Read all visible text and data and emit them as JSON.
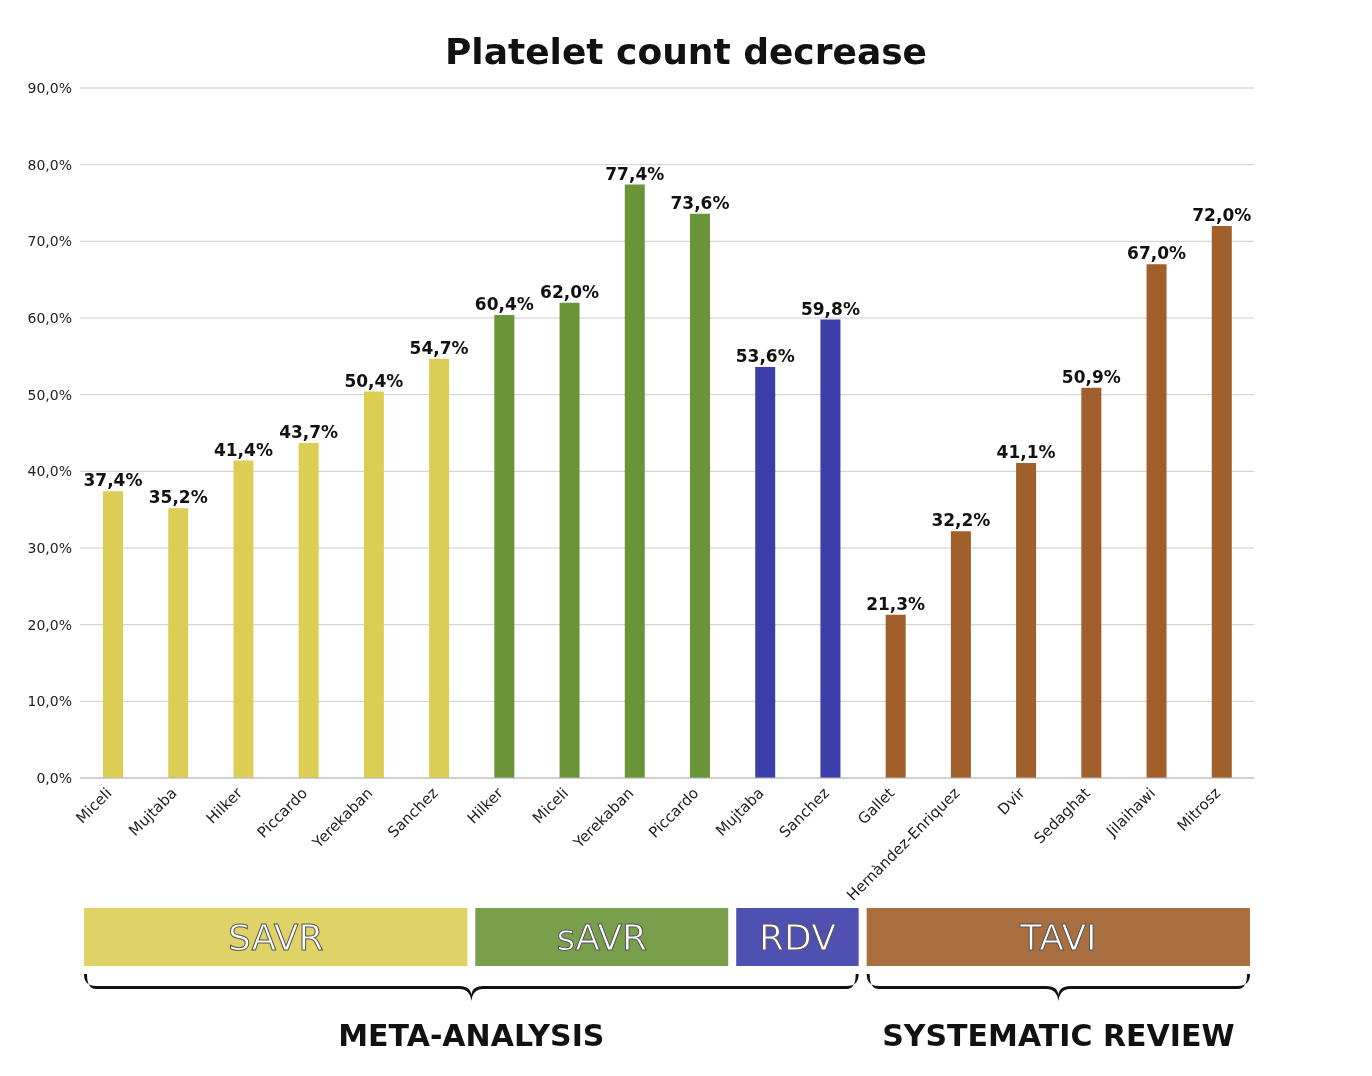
{
  "chart_data": {
    "type": "bar",
    "title": "Platelet count decrease",
    "categories": [
      "Miceli",
      "Mujtaba",
      "Hilker",
      "Piccardo",
      "Yerekaban",
      "Sanchez",
      "Hilker",
      "Miceli",
      "Yerekaban",
      "Piccardo",
      "Mujtaba",
      "Sanchez",
      "Gallet",
      "Hernàndez-Enriquez",
      "Dvir",
      "Sedaghat",
      "Jilaihawi",
      "Mitrosz"
    ],
    "values": [
      37.4,
      35.2,
      41.4,
      43.7,
      50.4,
      54.7,
      60.4,
      62.0,
      77.4,
      73.6,
      53.6,
      59.8,
      21.3,
      32.2,
      41.1,
      50.9,
      67.0,
      72.0
    ],
    "value_labels": [
      "37,4%",
      "35,2%",
      "41,4%",
      "43,7%",
      "50,4%",
      "54,7%",
      "60,4%",
      "62,0%",
      "77,4%",
      "73,6%",
      "53,6%",
      "59,8%",
      "21,3%",
      "32,2%",
      "41,1%",
      "50,9%",
      "67,0%",
      "72,0%"
    ],
    "colors": [
      "#dccd55",
      "#dccd55",
      "#dccd55",
      "#dccd55",
      "#dccd55",
      "#dccd55",
      "#6a9438",
      "#6a9438",
      "#6a9438",
      "#6a9438",
      "#3b3ea8",
      "#3b3ea8",
      "#a15f2b",
      "#a15f2b",
      "#a15f2b",
      "#a15f2b",
      "#a15f2b",
      "#a15f2b"
    ],
    "ylim": [
      0,
      90
    ],
    "yticks": [
      {
        "value": 0,
        "label": "0,0%"
      },
      {
        "value": 10,
        "label": "10,0%"
      },
      {
        "value": 20,
        "label": "20,0%"
      },
      {
        "value": 30,
        "label": "30,0%"
      },
      {
        "value": 40,
        "label": "40,0%"
      },
      {
        "value": 50,
        "label": "50,0%"
      },
      {
        "value": 60,
        "label": "60,0%"
      },
      {
        "value": 70,
        "label": "70,0%"
      },
      {
        "value": 80,
        "label": "80,0%"
      },
      {
        "value": 90,
        "label": "90,0%"
      }
    ],
    "grid": "y",
    "legend": false,
    "annotations": [
      "SAVR",
      "sAVR",
      "RDV",
      "TAVI",
      "META-ANALYSIS",
      "SYSTEMATIC REVIEW"
    ]
  }
}
